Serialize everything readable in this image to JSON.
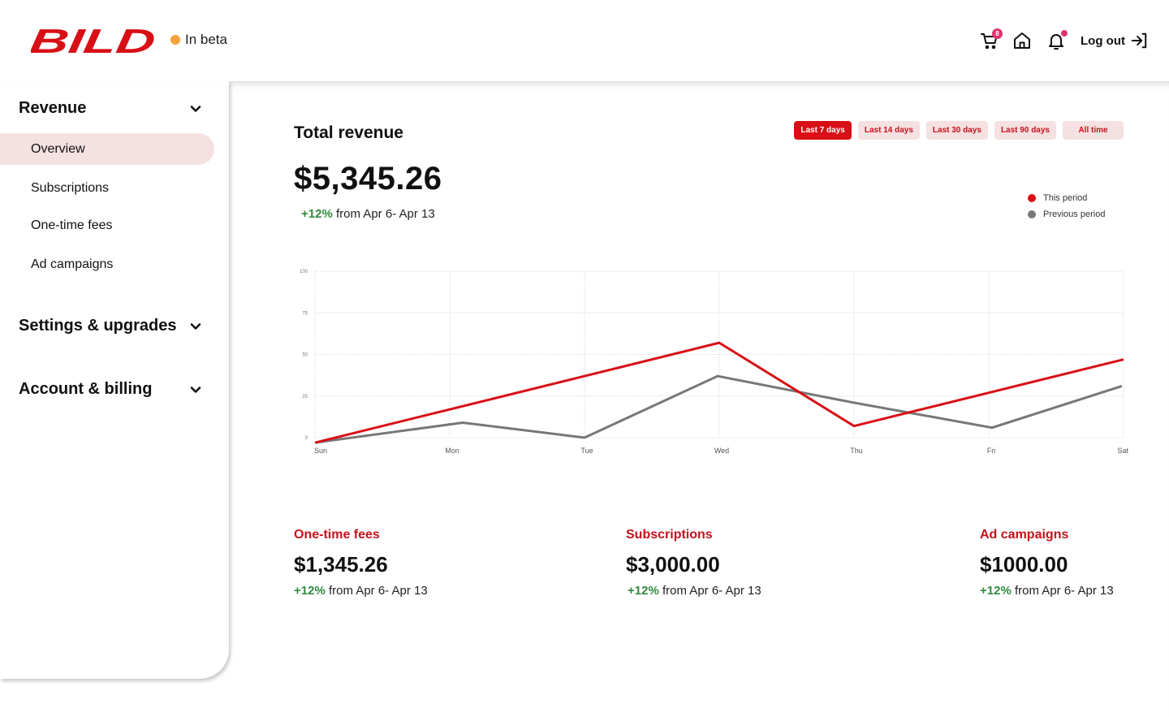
{
  "header": {
    "brand": "BILD",
    "brand_color": "#d80f16",
    "beta_label": "In beta",
    "beta_dot_color": "#f5a23a",
    "cart_icon": "cart-icon",
    "cart_count": "8",
    "home_icon": "home-icon",
    "bell_icon": "bell-icon",
    "logout_label": "Log out",
    "logout_icon": "logout-arrow-icon"
  },
  "sidebar": {
    "sections": [
      {
        "label": "Revenue",
        "expanded": true,
        "items": [
          {
            "label": "Overview",
            "active": true
          },
          {
            "label": "Subscriptions",
            "active": false
          },
          {
            "label": "One-time fees",
            "active": false
          },
          {
            "label": "Ad campaigns",
            "active": false
          }
        ]
      },
      {
        "label": "Settings & upgrades",
        "expanded": false
      },
      {
        "label": "Account & billing",
        "expanded": false
      }
    ]
  },
  "main": {
    "title": "Total revenue",
    "total": "$5,345.26",
    "delta_pct": "+12%",
    "delta_text": "from Apr 6- Apr 13",
    "ranges": [
      {
        "label": "Last 7 days",
        "active": true
      },
      {
        "label": "Last 14 days",
        "active": false
      },
      {
        "label": "Last 30 days",
        "active": false
      },
      {
        "label": "Last 90 days",
        "active": false
      },
      {
        "label": "All time",
        "active": false
      }
    ],
    "legend": [
      {
        "label": "This period",
        "color": "#d80f16"
      },
      {
        "label": "Previous period",
        "color": "#777777"
      }
    ],
    "cards": [
      {
        "label": "One-time fees",
        "value": "$1,345.26",
        "delta_pct": "+12%",
        "delta_text": "from Apr 6- Apr 13"
      },
      {
        "label": "Subscriptions",
        "value": "$3,000.00",
        "delta_pct": "+12%",
        "delta_text": "from Apr 6- Apr 13"
      },
      {
        "label": "Ad campaigns",
        "value": "$1000.00",
        "delta_pct": "+12%",
        "delta_text": "from Apr 6- Apr 13"
      }
    ]
  },
  "chart_data": {
    "type": "line",
    "title": "",
    "xlabel": "",
    "ylabel": "",
    "categories": [
      "Sun",
      "Mon",
      "Tue",
      "Wed",
      "Thu",
      "Fri",
      "Sat"
    ],
    "yticks": [
      0,
      25,
      50,
      75,
      100
    ],
    "ylim": [
      0,
      100
    ],
    "grid": true,
    "legend_position": "top-right",
    "series": [
      {
        "name": "This period",
        "color": "#d80f16",
        "values": [
          -3,
          17,
          37,
          57,
          7,
          27,
          47
        ]
      },
      {
        "name": "Previous period",
        "color": "#777777",
        "values": [
          -3,
          9,
          0,
          37,
          21,
          6,
          31
        ]
      }
    ]
  }
}
